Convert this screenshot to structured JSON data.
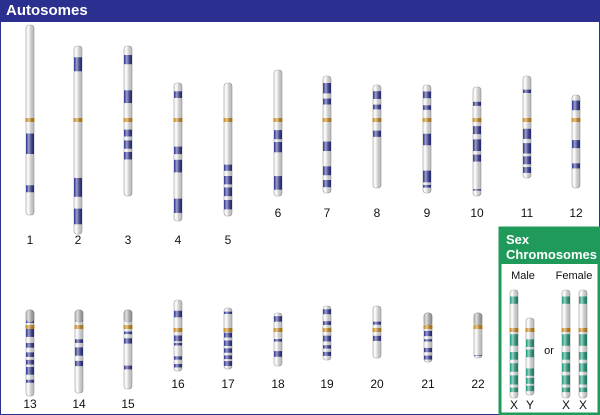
{
  "header": {
    "title": "Autosomes"
  },
  "colors": {
    "autosome_band": "#2b2f8f",
    "sex_band": "#1a9a7a",
    "centromere": "#c98a1a",
    "panel_border": "#2b2f8f",
    "sex_panel": "#1f9a5a",
    "chromosome_body": "#f2f2f2"
  },
  "autosomes": [
    {
      "label": "1"
    },
    {
      "label": "2"
    },
    {
      "label": "3"
    },
    {
      "label": "4"
    },
    {
      "label": "5"
    },
    {
      "label": "6"
    },
    {
      "label": "7"
    },
    {
      "label": "8"
    },
    {
      "label": "9"
    },
    {
      "label": "10"
    },
    {
      "label": "11"
    },
    {
      "label": "12"
    },
    {
      "label": "13"
    },
    {
      "label": "14"
    },
    {
      "label": "15"
    },
    {
      "label": "16"
    },
    {
      "label": "17"
    },
    {
      "label": "18"
    },
    {
      "label": "19"
    },
    {
      "label": "20"
    },
    {
      "label": "21"
    },
    {
      "label": "22"
    }
  ],
  "sex_chromosomes": {
    "title_line1": "Sex",
    "title_line2": "Chromosomes",
    "male_label": "Male",
    "female_label": "Female",
    "or_label": "or",
    "male": [
      {
        "label": "X"
      },
      {
        "label": "Y"
      }
    ],
    "female": [
      {
        "label": "X"
      },
      {
        "label": "X"
      }
    ]
  }
}
